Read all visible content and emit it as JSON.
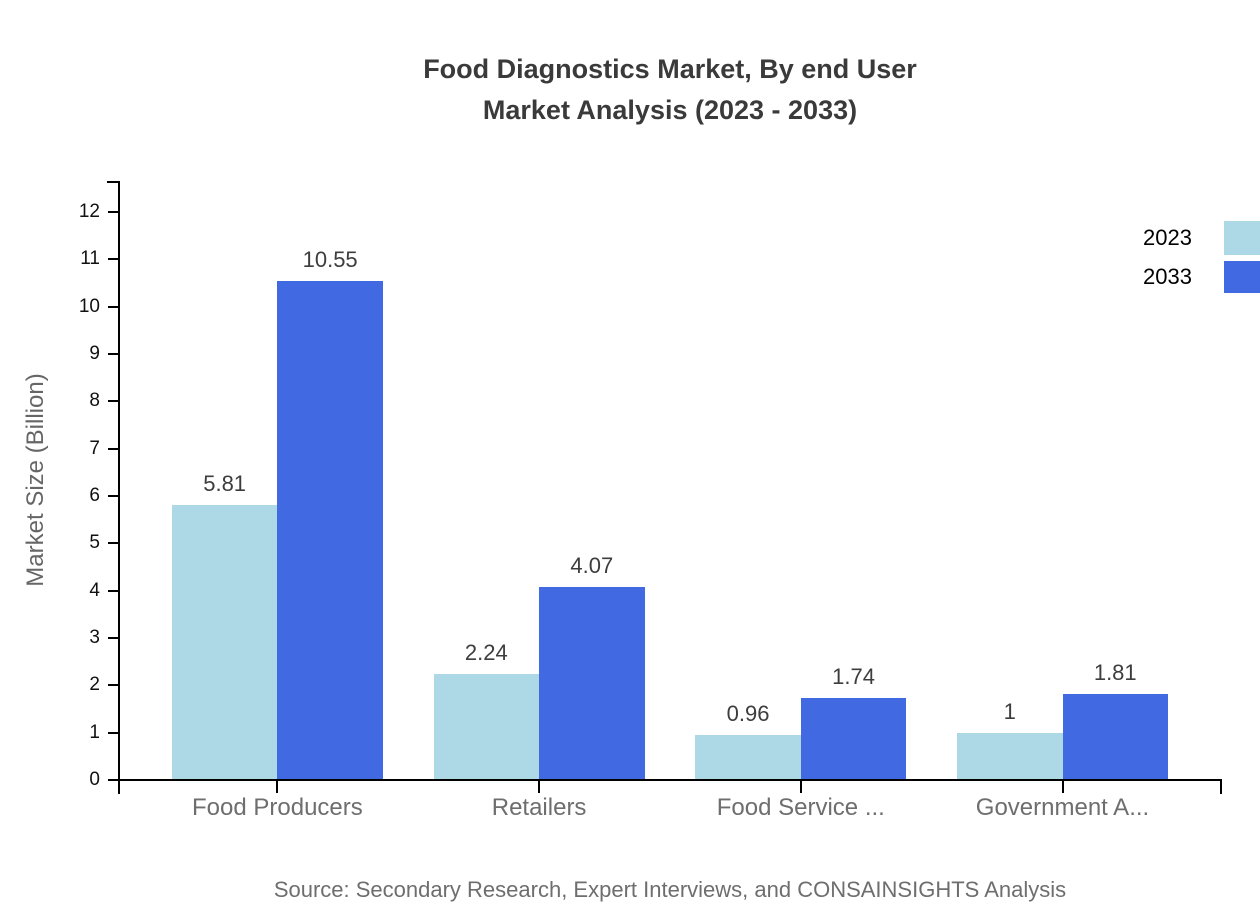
{
  "title": {
    "line1": "Food Diagnostics Market, By end User",
    "line2": "Market Analysis (2023 - 2033)"
  },
  "source": "Source: Secondary Research, Expert Interviews, and CONSAINSIGHTS Analysis",
  "legend": {
    "position": "top-right",
    "items": [
      {
        "label": "2023",
        "color": "#ADD8E6"
      },
      {
        "label": "2033",
        "color": "#4169E1"
      }
    ]
  },
  "chart_data": {
    "type": "bar",
    "title": "Food Diagnostics Market, By end User Market Analysis (2023 - 2033)",
    "categories": [
      "Food Producers",
      "Retailers",
      "Food Service ...",
      "Government A..."
    ],
    "series": [
      {
        "name": "2023",
        "color": "#ADD8E6",
        "values": [
          5.81,
          2.24,
          0.96,
          1
        ]
      },
      {
        "name": "2033",
        "color": "#4169E1",
        "values": [
          10.55,
          4.07,
          1.74,
          1.81
        ]
      }
    ],
    "xlabel": "",
    "ylabel": "Market Size (Billion)",
    "y_ticks": [
      0,
      1,
      2,
      3,
      4,
      5,
      6,
      7,
      8,
      9,
      10,
      11,
      12
    ],
    "ylim": [
      0,
      12.65
    ],
    "grid": false,
    "value_labels": true,
    "legend_position": "top-right"
  }
}
